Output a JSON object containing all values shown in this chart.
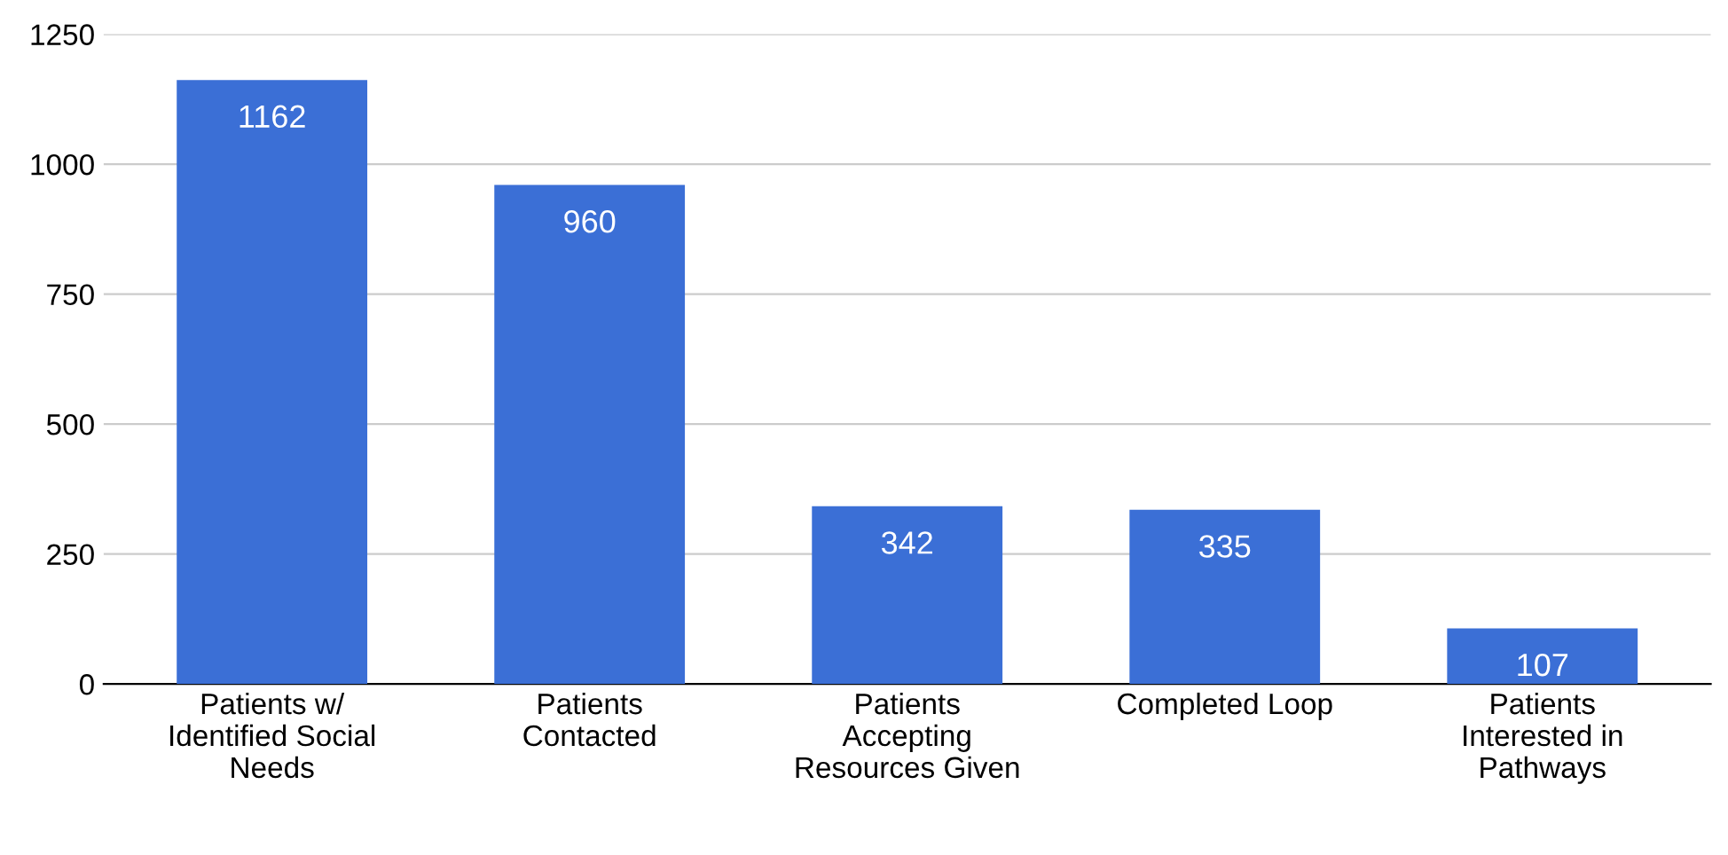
{
  "chart_data": {
    "type": "bar",
    "categories": [
      "Patients w/\nIdentified Social\nNeeds",
      "Patients\nContacted",
      "Patients\nAccepting\nResources Given",
      "Completed Loop",
      "Patients\nInterested in\nPathways"
    ],
    "values": [
      1162,
      960,
      342,
      335,
      107
    ],
    "color": "#3b6fd6",
    "ylim": [
      0,
      1250
    ],
    "yticks": [
      0,
      250,
      500,
      750,
      1000,
      1250
    ],
    "grid": "y",
    "data_labels": true
  }
}
